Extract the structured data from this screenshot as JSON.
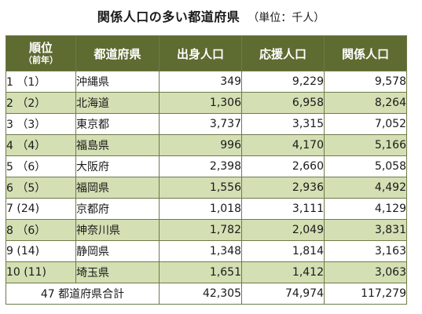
{
  "title": "関係人口の多い都道府県",
  "unit": "（単位：千人）",
  "header": {
    "rank": "順位",
    "rank_sub": "（前年）",
    "prefecture": "都道府県",
    "birthplace": "出身人口",
    "support": "応援人口",
    "related": "関係人口"
  },
  "rows": [
    {
      "rank": "1 （1）",
      "prefecture": "沖縄県",
      "birthplace": "349",
      "support": "9,229",
      "related": "9,578"
    },
    {
      "rank": "2 （2）",
      "prefecture": "北海道",
      "birthplace": "1,306",
      "support": "6,958",
      "related": "8,264"
    },
    {
      "rank": "3 （3）",
      "prefecture": "東京都",
      "birthplace": "3,737",
      "support": "3,315",
      "related": "7,052"
    },
    {
      "rank": "4 （4）",
      "prefecture": "福島県",
      "birthplace": "996",
      "support": "4,170",
      "related": "5,166"
    },
    {
      "rank": "5 （6）",
      "prefecture": "大阪府",
      "birthplace": "2,398",
      "support": "2,660",
      "related": "5,058"
    },
    {
      "rank": "6 （5）",
      "prefecture": "福岡県",
      "birthplace": "1,556",
      "support": "2,936",
      "related": "4,492"
    },
    {
      "rank": "7 (24)",
      "prefecture": "京都府",
      "birthplace": "1,018",
      "support": "3,111",
      "related": "4,129"
    },
    {
      "rank": "8 （6）",
      "prefecture": "神奈川県",
      "birthplace": "1,782",
      "support": "2,049",
      "related": "3,831"
    },
    {
      "rank": "9 (14)",
      "prefecture": "静岡県",
      "birthplace": "1,348",
      "support": "1,814",
      "related": "3,163"
    },
    {
      "rank": "10 (11)",
      "prefecture": "埼玉県",
      "birthplace": "1,651",
      "support": "1,412",
      "related": "3,063"
    }
  ],
  "total": {
    "label": "47 都道府県合計",
    "birthplace": "42,305",
    "support": "74,974",
    "related": "117,279"
  }
}
